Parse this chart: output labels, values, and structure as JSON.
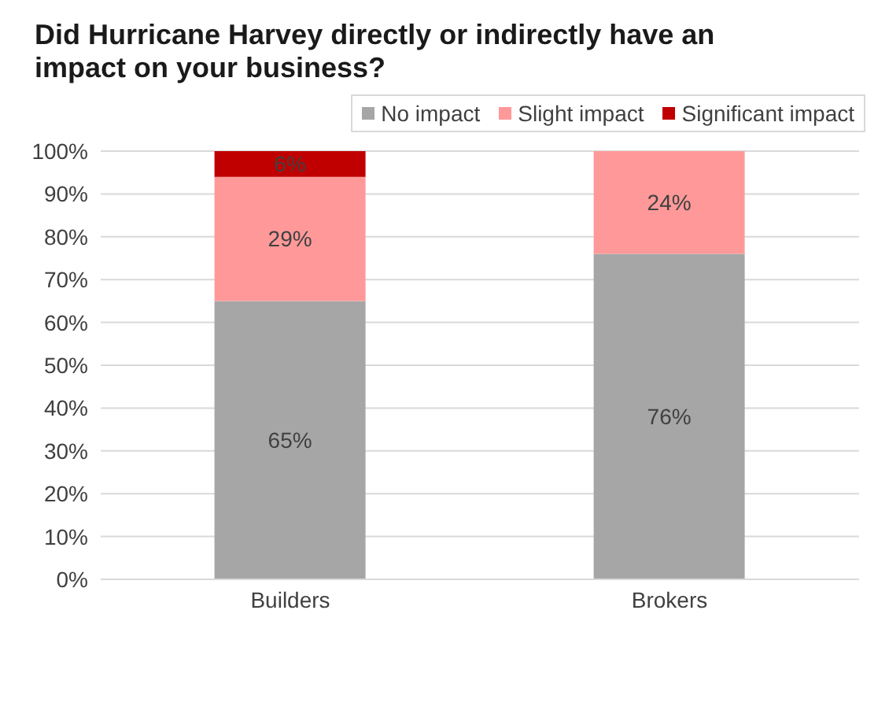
{
  "chart_data": {
    "type": "bar",
    "title": "Did Hurricane Harvey directly or indirectly have an impact on your business?",
    "categories": [
      "Builders",
      "Brokers"
    ],
    "stacked": true,
    "series": [
      {
        "name": "No impact",
        "color": "#a6a6a6",
        "values": [
          65,
          76
        ],
        "value_labels": [
          "65%",
          "76%"
        ]
      },
      {
        "name": "Slight impact",
        "color": "#ff9999",
        "values": [
          29,
          24
        ],
        "value_labels": [
          "29%",
          "24%"
        ]
      },
      {
        "name": "Significant impact",
        "color": "#c00000",
        "values": [
          6,
          null
        ],
        "value_labels": [
          "6%",
          null
        ]
      }
    ],
    "ylim": [
      0,
      100
    ],
    "yticks": [
      {
        "value": 0,
        "label": "0%"
      },
      {
        "value": 10,
        "label": "10%"
      },
      {
        "value": 20,
        "label": "20%"
      },
      {
        "value": 30,
        "label": "30%"
      },
      {
        "value": 40,
        "label": "40%"
      },
      {
        "value": 50,
        "label": "50%"
      },
      {
        "value": 60,
        "label": "60%"
      },
      {
        "value": 70,
        "label": "70%"
      },
      {
        "value": 80,
        "label": "80%"
      },
      {
        "value": 90,
        "label": "90%"
      },
      {
        "value": 100,
        "label": "100%"
      }
    ],
    "grid": "y",
    "legend": "top right"
  }
}
